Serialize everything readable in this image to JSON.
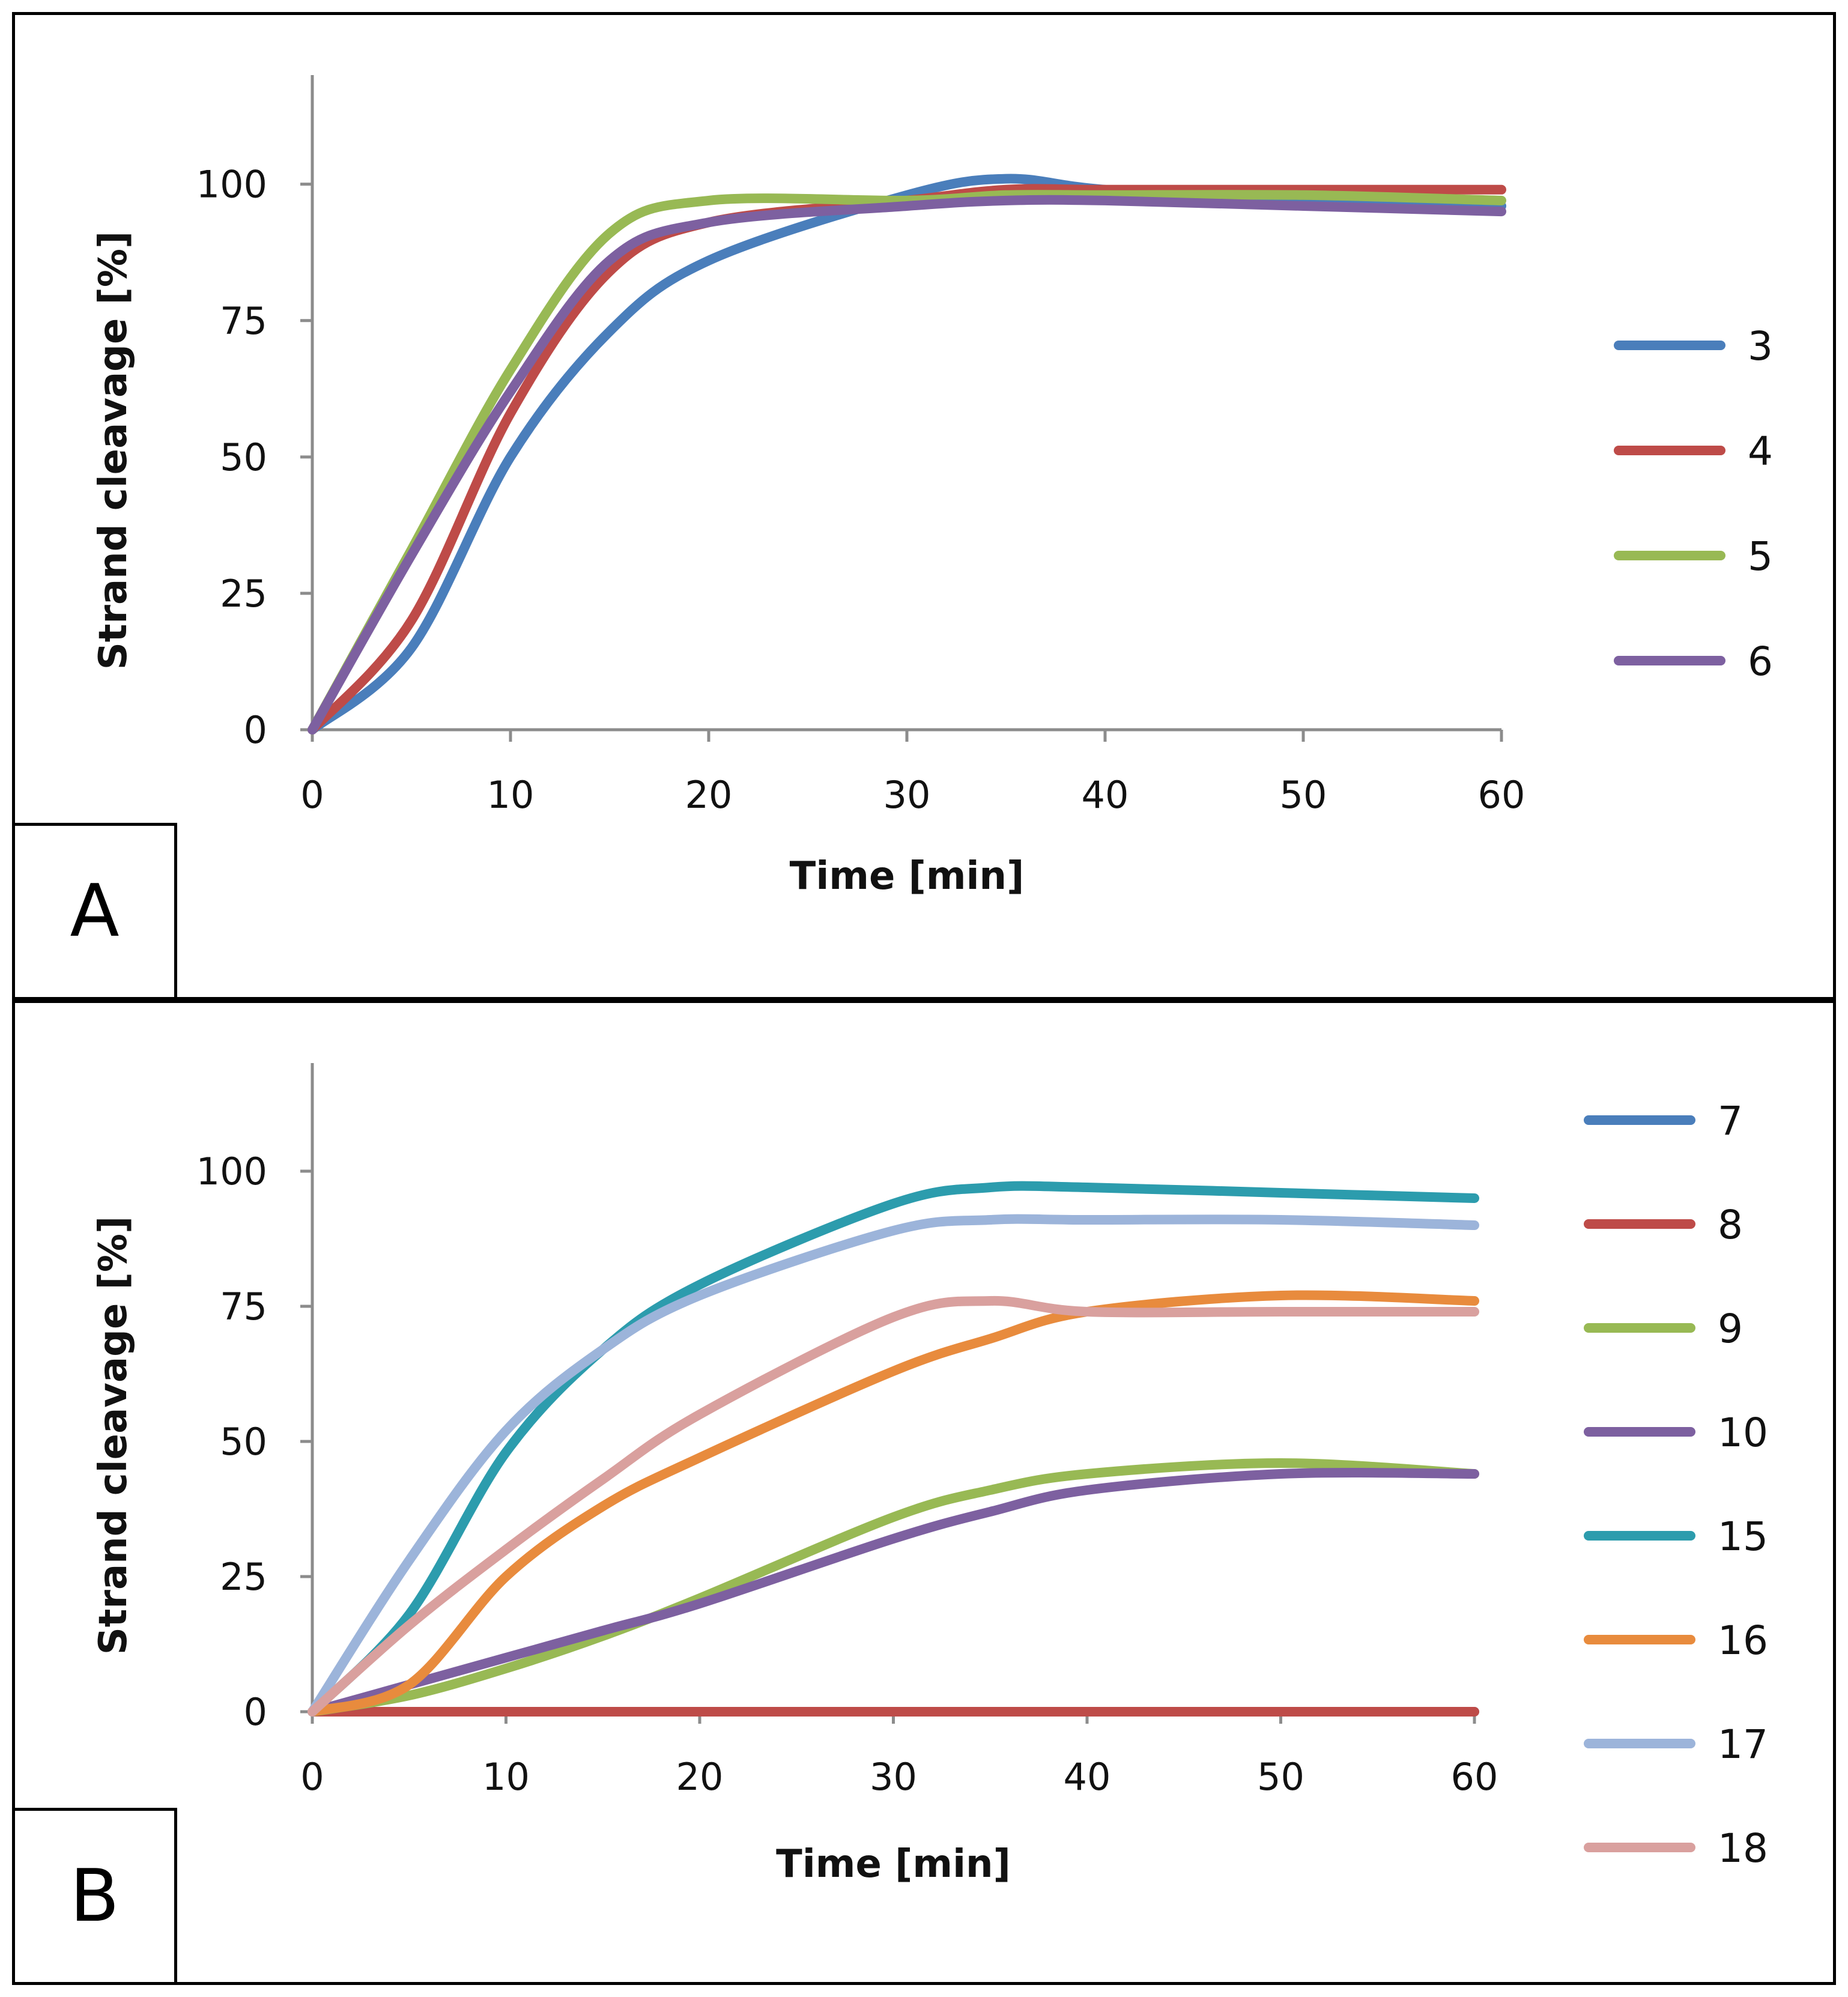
{
  "chart_data": [
    {
      "panel_label": "A",
      "type": "line",
      "xlabel": "Time [min]",
      "ylabel": "Strand cleavage [%]",
      "xlim": [
        0,
        60
      ],
      "ylim": [
        0,
        120
      ],
      "xticks": [
        0,
        10,
        20,
        30,
        40,
        50,
        60
      ],
      "yticks": [
        0,
        25,
        50,
        75,
        100
      ],
      "grid": false,
      "legend_position": "right",
      "x": [
        0,
        5,
        10,
        15,
        20,
        30,
        35,
        40,
        50,
        60
      ],
      "series": [
        {
          "name": "3",
          "color": "#4A7EBB",
          "values": [
            0,
            15,
            50,
            73,
            86,
            98,
            101,
            99,
            97,
            96
          ]
        },
        {
          "name": "4",
          "color": "#BE4B48",
          "values": [
            0,
            20,
            58,
            84,
            93,
            97,
            99,
            99,
            99,
            99
          ]
        },
        {
          "name": "5",
          "color": "#98B954",
          "values": [
            0,
            33,
            66,
            91,
            97,
            97,
            98,
            98,
            98,
            97
          ]
        },
        {
          "name": "6",
          "color": "#7D60A0",
          "values": [
            0,
            32,
            62,
            86,
            93,
            96,
            97,
            97,
            96,
            95
          ]
        }
      ]
    },
    {
      "panel_label": "B",
      "type": "line",
      "xlabel": "Time [min]",
      "ylabel": "Strand cleavage [%]",
      "xlim": [
        0,
        60
      ],
      "ylim": [
        0,
        120
      ],
      "xticks": [
        0,
        10,
        20,
        30,
        40,
        50,
        60
      ],
      "yticks": [
        0,
        25,
        50,
        75,
        100
      ],
      "grid": false,
      "legend_position": "right",
      "x": [
        0,
        5,
        10,
        15,
        20,
        30,
        35,
        40,
        50,
        60
      ],
      "series": [
        {
          "name": "7",
          "color": "#4A7EBB",
          "values": [
            0,
            0,
            0,
            0,
            0,
            0,
            0,
            0,
            0,
            0
          ]
        },
        {
          "name": "8",
          "color": "#BE4B48",
          "values": [
            0,
            0,
            0,
            0,
            0,
            0,
            0,
            0,
            0,
            0
          ]
        },
        {
          "name": "9",
          "color": "#98B954",
          "values": [
            0,
            3,
            8,
            14,
            21,
            36,
            41,
            44,
            46,
            44
          ]
        },
        {
          "name": "10",
          "color": "#7D60A0",
          "values": [
            0,
            5,
            10,
            15,
            20,
            32,
            37,
            41,
            44,
            44
          ]
        },
        {
          "name": "15",
          "color": "#2C9CAD",
          "values": [
            0,
            18,
            48,
            67,
            79,
            94,
            97,
            97,
            96,
            95
          ]
        },
        {
          "name": "16",
          "color": "#E88B3D",
          "values": [
            0,
            5,
            25,
            38,
            47,
            63,
            69,
            74,
            77,
            76
          ]
        },
        {
          "name": "17",
          "color": "#9CB4DA",
          "values": [
            0,
            28,
            52,
            67,
            77,
            89,
            91,
            91,
            91,
            90
          ]
        },
        {
          "name": "18",
          "color": "#D9A09E",
          "values": [
            0,
            16,
            30,
            43,
            55,
            73,
            76,
            74,
            74,
            74
          ]
        }
      ]
    }
  ]
}
